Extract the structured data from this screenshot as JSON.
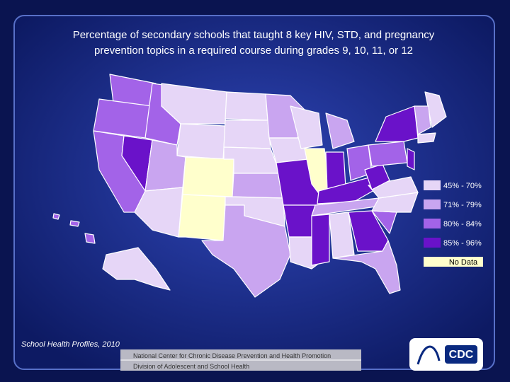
{
  "title": [
    "Percentage of secondary schools that taught 8 key HIV, STD, and pregnancy",
    "prevention topics in a required course during grades 9, 10, 11, or 12"
  ],
  "legend": [
    {
      "label": "45% - 70%",
      "color": "#e6d6f7"
    },
    {
      "label": "71% - 79%",
      "color": "#c9a5f0"
    },
    {
      "label": "80% - 84%",
      "color": "#a363e8"
    },
    {
      "label": "85% - 96%",
      "color": "#6a12c9"
    },
    {
      "label": "No Data",
      "color": "#ffffcc"
    }
  ],
  "source": "School Health Profiles, 2010",
  "footer": [
    "National Center for Chronic Disease Prevention and Health Promotion",
    "Division of Adolescent and School Health"
  ],
  "logo": "CDC"
}
